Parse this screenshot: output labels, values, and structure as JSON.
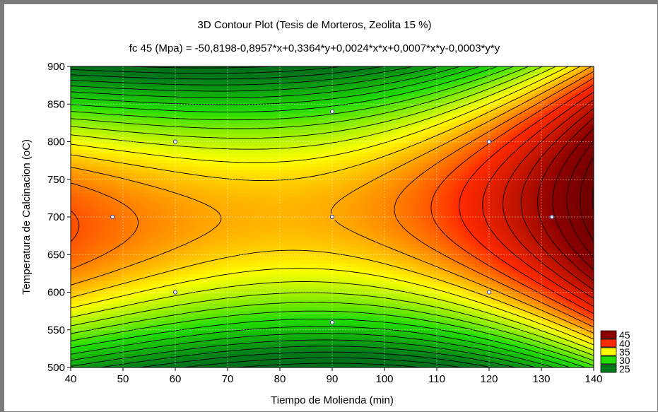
{
  "chart_data": {
    "type": "contour",
    "title": "3D Contour Plot (Tesis de Morteros, Zeolita 15 %)",
    "subtitle": "fc 45 (Mpa) = -50,8198-0,8957*x+0,3364*y+0,0024*x*x+0,0007*x*y-0,0003*y*y",
    "xlabel": "Tiempo de Molienda (min)",
    "ylabel": "Temperatura de Calcinacion (oC)",
    "xlim": [
      40,
      140
    ],
    "ylim": [
      500,
      900
    ],
    "x_ticks": [
      "40",
      "50",
      "60",
      "70",
      "80",
      "90",
      "100",
      "110",
      "120",
      "130",
      "140"
    ],
    "y_ticks": [
      "500",
      "550",
      "600",
      "650",
      "700",
      "750",
      "800",
      "850",
      "900"
    ],
    "grid": true,
    "legend_position": "bottom-right",
    "levels": [
      {
        "label": "45",
        "color": "#8b0000"
      },
      {
        "label": "40",
        "color": "#ff2a00"
      },
      {
        "label": "35",
        "color": "#ffff00"
      },
      {
        "label": "30",
        "color": "#22dd00"
      },
      {
        "label": "25",
        "color": "#007a1a"
      }
    ],
    "points": [
      {
        "x": 48,
        "y": 700
      },
      {
        "x": 60,
        "y": 800
      },
      {
        "x": 60,
        "y": 600
      },
      {
        "x": 90,
        "y": 840
      },
      {
        "x": 90,
        "y": 700
      },
      {
        "x": 90,
        "y": 560
      },
      {
        "x": 120,
        "y": 800
      },
      {
        "x": 120,
        "y": 600
      },
      {
        "x": 132,
        "y": 700
      }
    ]
  }
}
